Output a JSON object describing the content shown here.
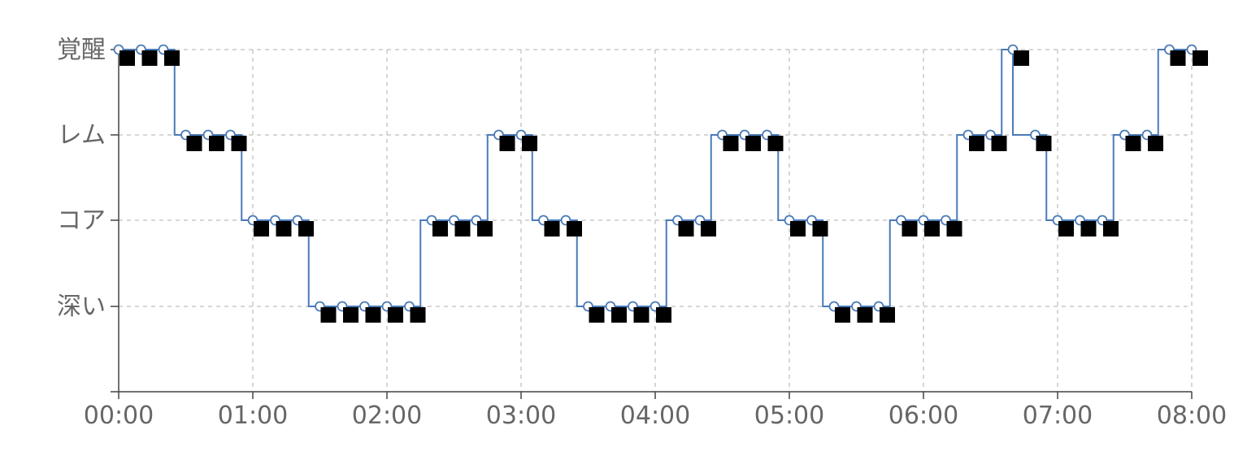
{
  "chart_data": {
    "type": "line",
    "step": "after",
    "x_unit": "minutes",
    "xlim": [
      0,
      480
    ],
    "x_ticks": [
      0,
      60,
      120,
      180,
      240,
      300,
      360,
      420,
      480
    ],
    "x_tick_labels": [
      "00:00",
      "01:00",
      "02:00",
      "03:00",
      "04:00",
      "05:00",
      "06:00",
      "07:00",
      "08:00"
    ],
    "y_categories": [
      "深い",
      "コア",
      "レム",
      "覚醒"
    ],
    "ylim": [
      -0.5,
      3
    ],
    "grid": true,
    "line_color": "#4a7ab8",
    "marker_fill": "#ffffff",
    "square_color": "#000000",
    "stage_segments": [
      {
        "start": 0,
        "end": 25,
        "stage": "覚醒"
      },
      {
        "start": 25,
        "end": 55,
        "stage": "レム"
      },
      {
        "start": 55,
        "end": 85,
        "stage": "コア"
      },
      {
        "start": 85,
        "end": 135,
        "stage": "深い"
      },
      {
        "start": 135,
        "end": 165,
        "stage": "コア"
      },
      {
        "start": 165,
        "end": 185,
        "stage": "レム"
      },
      {
        "start": 185,
        "end": 205,
        "stage": "コア"
      },
      {
        "start": 205,
        "end": 245,
        "stage": "深い"
      },
      {
        "start": 245,
        "end": 265,
        "stage": "コア"
      },
      {
        "start": 265,
        "end": 295,
        "stage": "レム"
      },
      {
        "start": 295,
        "end": 315,
        "stage": "コア"
      },
      {
        "start": 315,
        "end": 345,
        "stage": "深い"
      },
      {
        "start": 345,
        "end": 375,
        "stage": "コア"
      },
      {
        "start": 375,
        "end": 395,
        "stage": "レム"
      },
      {
        "start": 395,
        "end": 400,
        "stage": "覚醒"
      },
      {
        "start": 400,
        "end": 415,
        "stage": "レム"
      },
      {
        "start": 415,
        "end": 445,
        "stage": "コア"
      },
      {
        "start": 445,
        "end": 465,
        "stage": "レム"
      },
      {
        "start": 465,
        "end": 480,
        "stage": "覚醒"
      }
    ],
    "points": [
      {
        "x": 0,
        "y": "覚醒"
      },
      {
        "x": 10,
        "y": "覚醒"
      },
      {
        "x": 20,
        "y": "覚醒"
      },
      {
        "x": 30,
        "y": "レム"
      },
      {
        "x": 40,
        "y": "レム"
      },
      {
        "x": 50,
        "y": "レム"
      },
      {
        "x": 60,
        "y": "コア"
      },
      {
        "x": 70,
        "y": "コア"
      },
      {
        "x": 80,
        "y": "コア"
      },
      {
        "x": 90,
        "y": "深い"
      },
      {
        "x": 100,
        "y": "深い"
      },
      {
        "x": 110,
        "y": "深い"
      },
      {
        "x": 120,
        "y": "深い"
      },
      {
        "x": 130,
        "y": "深い"
      },
      {
        "x": 140,
        "y": "コア"
      },
      {
        "x": 150,
        "y": "コア"
      },
      {
        "x": 160,
        "y": "コア"
      },
      {
        "x": 170,
        "y": "レム"
      },
      {
        "x": 180,
        "y": "レム"
      },
      {
        "x": 190,
        "y": "コア"
      },
      {
        "x": 200,
        "y": "コア"
      },
      {
        "x": 210,
        "y": "深い"
      },
      {
        "x": 220,
        "y": "深い"
      },
      {
        "x": 230,
        "y": "深い"
      },
      {
        "x": 240,
        "y": "深い"
      },
      {
        "x": 250,
        "y": "コア"
      },
      {
        "x": 260,
        "y": "コア"
      },
      {
        "x": 270,
        "y": "レム"
      },
      {
        "x": 280,
        "y": "レム"
      },
      {
        "x": 290,
        "y": "レム"
      },
      {
        "x": 300,
        "y": "コア"
      },
      {
        "x": 310,
        "y": "コア"
      },
      {
        "x": 320,
        "y": "深い"
      },
      {
        "x": 330,
        "y": "深い"
      },
      {
        "x": 340,
        "y": "深い"
      },
      {
        "x": 350,
        "y": "コア"
      },
      {
        "x": 360,
        "y": "コア"
      },
      {
        "x": 370,
        "y": "コア"
      },
      {
        "x": 380,
        "y": "レム"
      },
      {
        "x": 390,
        "y": "レム"
      },
      {
        "x": 400,
        "y": "覚醒"
      },
      {
        "x": 410,
        "y": "レム"
      },
      {
        "x": 420,
        "y": "コア"
      },
      {
        "x": 430,
        "y": "コア"
      },
      {
        "x": 440,
        "y": "コア"
      },
      {
        "x": 450,
        "y": "レム"
      },
      {
        "x": 460,
        "y": "レム"
      },
      {
        "x": 470,
        "y": "覚醒"
      },
      {
        "x": 480,
        "y": "覚醒"
      }
    ]
  }
}
